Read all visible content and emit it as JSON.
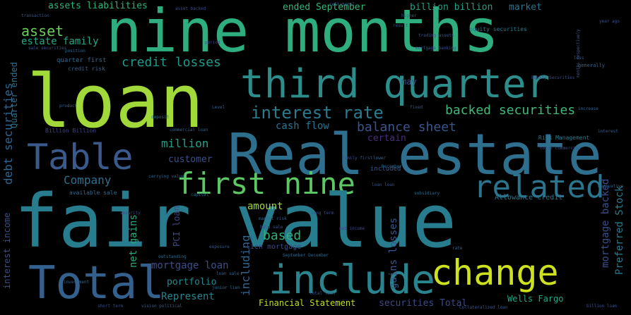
{
  "words": [
    {
      "text": "nine months",
      "color": "#2eae7f"
    },
    {
      "text": "loan",
      "color": "#a2d93a"
    },
    {
      "text": "third quarter",
      "color": "#2c8d8b"
    },
    {
      "text": "Real estate",
      "color": "#2f6f8e"
    },
    {
      "text": "Table",
      "color": "#3b5a8c"
    },
    {
      "text": "first nine",
      "color": "#5cc863"
    },
    {
      "text": "related",
      "color": "#2b748e"
    },
    {
      "text": "fair value",
      "color": "#277c8e"
    },
    {
      "text": "include",
      "color": "#2a848e"
    },
    {
      "text": "change",
      "color": "#cde11d"
    },
    {
      "text": "Total",
      "color": "#33608d"
    },
    {
      "text": "interest rate",
      "color": "#2b7a8e"
    },
    {
      "text": "backed securities",
      "color": "#40b87a"
    },
    {
      "text": "credit losses",
      "color": "#1f9a8a"
    },
    {
      "text": "balance sheet",
      "color": "#39558c"
    },
    {
      "text": "cash flow",
      "color": "#2c728e"
    },
    {
      "text": "asset",
      "color": "#6ccd5a"
    },
    {
      "text": "estate family",
      "color": "#22a785"
    },
    {
      "text": "assets liabilities",
      "color": "#2fb47c"
    },
    {
      "text": "ended September",
      "color": "#35b779"
    },
    {
      "text": "billion billion",
      "color": "#20a386"
    },
    {
      "text": "market",
      "color": "#2c738e"
    },
    {
      "text": "million",
      "color": "#1fa088"
    },
    {
      "text": "Company",
      "color": "#2e6f8e"
    },
    {
      "text": "customer",
      "color": "#3c508b"
    },
    {
      "text": "certain",
      "color": "#46307e"
    },
    {
      "text": "amount",
      "color": "#9dd93b"
    },
    {
      "text": "based",
      "color": "#2db27d"
    },
    {
      "text": "portfolio",
      "color": "#23898e"
    },
    {
      "text": "mortgage loan",
      "color": "#3d4e8a"
    },
    {
      "text": "Represent",
      "color": "#25858e"
    },
    {
      "text": "Wells Fargo",
      "color": "#22a785"
    },
    {
      "text": "securities Total",
      "color": "#3e4989"
    },
    {
      "text": "Financial Statement",
      "color": "#c2df23"
    },
    {
      "text": "Allowance credit",
      "color": "#2a778e"
    },
    {
      "text": "may",
      "color": "#3b518b"
    },
    {
      "text": "debt securities",
      "color": "#31668e"
    },
    {
      "text": "interest income",
      "color": "#3d4d8a"
    },
    {
      "text": "Quarter ended",
      "color": "#2c738e"
    },
    {
      "text": "net gains",
      "color": "#25ab82"
    },
    {
      "text": "including",
      "color": "#33638d"
    },
    {
      "text": "gains losses",
      "color": "#375a8c"
    },
    {
      "text": "Preferred Stock",
      "color": "#29798e"
    },
    {
      "text": "mortgage backed",
      "color": "#3c4f8a"
    },
    {
      "text": "quarter first",
      "color": "#31678e"
    },
    {
      "text": "credit risk",
      "color": "#355f8d"
    },
    {
      "text": "Risk Management",
      "color": "#287d8e"
    },
    {
      "text": "included",
      "color": "#38588c"
    },
    {
      "text": "PCI loan",
      "color": "#3f4788"
    },
    {
      "text": "lien mortgage",
      "color": "#3e4a89"
    },
    {
      "text": "Billion Billion",
      "color": "#414487"
    },
    {
      "text": "available sale",
      "color": "#306a8e"
    },
    {
      "text": "equity securities",
      "color": "#2a788e"
    },
    {
      "text": "mortgage banking",
      "color": "#3a548c"
    },
    {
      "text": "trading assets",
      "color": "#39568c"
    },
    {
      "text": "sale securities",
      "color": "#3b528b"
    },
    {
      "text": "transaction",
      "color": "#38588c"
    },
    {
      "text": "higher",
      "color": "#355e8d"
    },
    {
      "text": "result",
      "color": "#39568c"
    },
    {
      "text": "position",
      "color": "#2f6c8e"
    },
    {
      "text": "loss",
      "color": "#345f8d"
    },
    {
      "text": "investment",
      "color": "#32648e"
    },
    {
      "text": "commercial loan",
      "color": "#33638d"
    },
    {
      "text": "total commercial",
      "color": "#3b528b"
    },
    {
      "text": "generally",
      "color": "#31688e"
    },
    {
      "text": "derivative",
      "color": "#30698e"
    },
    {
      "text": "Equity Securities",
      "color": "#3e4c8a"
    },
    {
      "text": "net income",
      "color": "#3f4889"
    },
    {
      "text": "carrying value",
      "color": "#33638d"
    },
    {
      "text": "lower",
      "color": "#2f6b8e"
    },
    {
      "text": "exposure",
      "color": "#38598c"
    },
    {
      "text": "family first",
      "color": "#3a548c"
    },
    {
      "text": "market risk",
      "color": "#32648e"
    },
    {
      "text": "held sale",
      "color": "#3b518b"
    },
    {
      "text": "long term",
      "color": "#3e4c8a"
    },
    {
      "text": "total loan",
      "color": "#38598c"
    },
    {
      "text": "junior lien",
      "color": "#2e6e8e"
    },
    {
      "text": "short term",
      "color": "#3d4e8a"
    },
    {
      "text": "vision political",
      "color": "#355f8d"
    },
    {
      "text": "billion loan",
      "color": "#3b528b"
    },
    {
      "text": "Collateralized loan",
      "color": "#39568c"
    },
    {
      "text": "September December",
      "color": "#31678e"
    },
    {
      "text": "outstanding",
      "color": "#2e6e8e"
    },
    {
      "text": "rate",
      "color": "#33628d"
    },
    {
      "text": "loan sale",
      "color": "#345f8d"
    },
    {
      "text": "year ago",
      "color": "#3a538b"
    },
    {
      "text": "December",
      "color": "#306a8e"
    },
    {
      "text": "collateral",
      "color": "#2e6e8e"
    },
    {
      "text": "asset backed",
      "color": "#3d4e8a"
    },
    {
      "text": "months respectively",
      "color": "#38598c"
    },
    {
      "text": "increase",
      "color": "#33638d"
    },
    {
      "text": "loan loan",
      "color": "#3b528b"
    },
    {
      "text": "product",
      "color": "#32648e"
    },
    {
      "text": "subsidiary",
      "color": "#2f6b8e"
    },
    {
      "text": "interest",
      "color": "#355e8d"
    },
    {
      "text": "capital",
      "color": "#30698e"
    },
    {
      "text": "period",
      "color": "#3f4788"
    },
    {
      "text": "deposit",
      "color": "#2c728e"
    },
    {
      "text": "security",
      "color": "#3e4a89"
    },
    {
      "text": "fixed",
      "color": "#39568c"
    },
    {
      "text": "Level",
      "color": "#33638d"
    }
  ]
}
